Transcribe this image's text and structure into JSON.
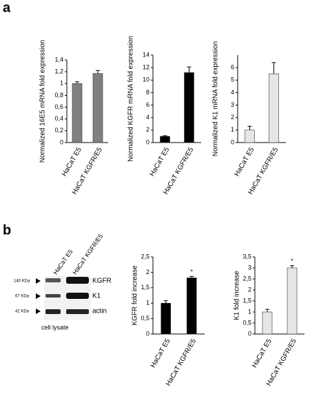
{
  "panels": [
    "a",
    "b"
  ],
  "blot": {
    "lanes": [
      "HaCaT E5",
      "HaCaT KGFR/E5"
    ],
    "bands": [
      {
        "marker": "140 KDa",
        "label": "KGFR"
      },
      {
        "marker": "67 KDa",
        "label": "K1"
      },
      {
        "marker": "42 KDa",
        "label": "actin"
      }
    ],
    "caption": "cell lysate"
  },
  "chart_data": [
    {
      "type": "bar",
      "ylabel": "Normalized 16E5 mRNA fold expression",
      "categories": [
        "HaCaT E5",
        "HaCaT KGFR/E5"
      ],
      "series": [
        {
          "color": "#808080",
          "values": [
            1.0,
            1.17
          ],
          "errors": [
            0.03,
            0.05
          ]
        }
      ],
      "ylim": [
        0,
        1.4
      ],
      "yticks": [
        0,
        {
          "value": 0.2,
          "label": "0,2"
        },
        {
          "value": 0.4,
          "label": "0,4"
        },
        {
          "value": 0.6,
          "label": "0,6"
        },
        {
          "value": 0.8,
          "label": "0,8"
        },
        1,
        {
          "value": 1.2,
          "label": "1,2"
        },
        {
          "value": 1.4,
          "label": "1,4"
        }
      ]
    },
    {
      "type": "bar",
      "ylabel": "Normalized KGFR mRNA fold expression",
      "categories": [
        "HaCaT E5",
        "HaCaT KGFR/E5"
      ],
      "series": [
        {
          "color": "#000000",
          "values": [
            1.0,
            11.2
          ],
          "errors": [
            0.1,
            0.9
          ]
        }
      ],
      "ylim": [
        0,
        14
      ],
      "yticks": [
        0,
        2,
        4,
        6,
        8,
        10,
        12,
        14
      ]
    },
    {
      "type": "bar",
      "ylabel": "Normalized K1 mRNA fold expression",
      "categories": [
        "HaCaT E5",
        "HaCaT KGFR/E5"
      ],
      "series": [
        {
          "color": "#e6e6e6",
          "values": [
            1.0,
            5.5
          ],
          "errors": [
            0.3,
            0.9
          ]
        }
      ],
      "ylim": [
        0,
        7
      ],
      "yticks": [
        0,
        1,
        2,
        3,
        4,
        5,
        6
      ]
    },
    {
      "type": "bar",
      "ylabel": "KGFR  fold increase",
      "categories": [
        "HaCaT E5",
        "HaCaT KGFR/E5"
      ],
      "series": [
        {
          "color": "#000000",
          "values": [
            1.0,
            1.82
          ],
          "errors": [
            0.08,
            0.05
          ],
          "annotations": [
            null,
            "*"
          ]
        }
      ],
      "ylim": [
        0,
        2.5
      ],
      "yticks": [
        0,
        {
          "value": 0.5,
          "label": "0,5"
        },
        1,
        {
          "value": 1.5,
          "label": "1,5"
        },
        2,
        {
          "value": 2.5,
          "label": "2,5"
        }
      ]
    },
    {
      "type": "bar",
      "ylabel": "K1 fold increase",
      "categories": [
        "HaCaT E5",
        "HaCaT KGFR/E5"
      ],
      "series": [
        {
          "color": "#e6e6e6",
          "values": [
            1.0,
            3.0
          ],
          "errors": [
            0.12,
            0.1
          ],
          "annotations": [
            null,
            "*"
          ]
        }
      ],
      "ylim": [
        0,
        3.5
      ],
      "yticks": [
        0,
        {
          "value": 0.5,
          "label": "0,5"
        },
        1,
        {
          "value": 1.5,
          "label": "1,5"
        },
        2,
        {
          "value": 2.5,
          "label": "2,5"
        },
        3,
        {
          "value": 3.5,
          "label": "3,5"
        }
      ]
    }
  ]
}
